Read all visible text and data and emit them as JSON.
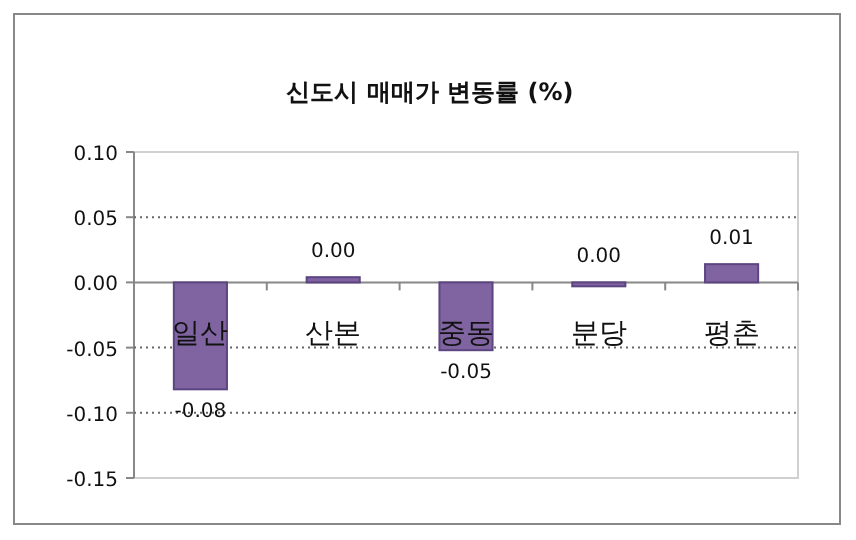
{
  "chart_data": {
    "type": "bar",
    "title": "신도시 매매가 변동률 (%)",
    "categories": [
      "일산",
      "산본",
      "중동",
      "분당",
      "평촌"
    ],
    "values": [
      -0.082,
      0.004,
      -0.052,
      -0.003,
      0.014
    ],
    "value_labels": [
      "-0.08",
      "0.00",
      "-0.05",
      "0.00",
      "0.01"
    ],
    "color": "#8064a2",
    "ylim": [
      -0.15,
      0.1
    ],
    "yticks": [
      {
        "value": -0.15,
        "label": "-0.15"
      },
      {
        "value": -0.1,
        "label": "-0.10"
      },
      {
        "value": -0.05,
        "label": "-0.05"
      },
      {
        "value": 0,
        "label": "0.00"
      },
      {
        "value": 0.05,
        "label": "0.05"
      },
      {
        "value": 0.1,
        "label": "0.10"
      }
    ],
    "grid": "y"
  }
}
